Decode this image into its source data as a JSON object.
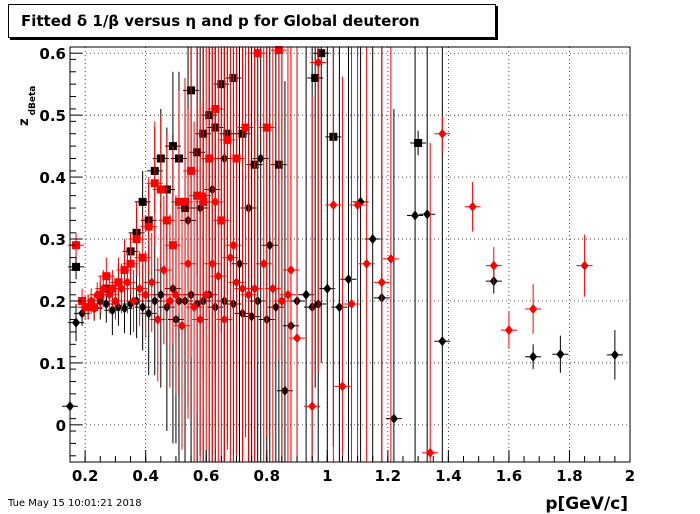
{
  "title": "Fitted δ 1/β versus η and p for Global deuteron",
  "footer": "Tue May 15 10:01:21 2018",
  "chart_data": {
    "type": "scatter",
    "xlabel": "p[GeV/c]",
    "ylabel_main": "z",
    "ylabel_sub": "dBeta",
    "xlim": [
      0.15,
      2.0
    ],
    "ylim": [
      -0.06,
      0.61
    ],
    "x_ticks": [
      "0.2",
      "0.4",
      "0.6",
      "0.8",
      "1",
      "1.2",
      "1.4",
      "1.6",
      "1.8",
      "2"
    ],
    "y_ticks": [
      "0",
      "0.1",
      "0.2",
      "0.3",
      "0.4",
      "0.5",
      "0.6"
    ],
    "grid": true,
    "colors": {
      "black": "#000000",
      "red": "#ff0000"
    },
    "series": [
      {
        "color": "black",
        "marker": "diamond",
        "points": [
          [
            0.15,
            0.03,
            0.02
          ],
          [
            0.17,
            0.165,
            0.03
          ],
          [
            0.19,
            0.18,
            0.02
          ],
          [
            0.21,
            0.19,
            0.02
          ],
          [
            0.23,
            0.188,
            0.02
          ],
          [
            0.25,
            0.2,
            0.03
          ],
          [
            0.27,
            0.195,
            0.03
          ],
          [
            0.29,
            0.185,
            0.04
          ],
          [
            0.31,
            0.19,
            0.03
          ],
          [
            0.33,
            0.188,
            0.04
          ],
          [
            0.35,
            0.195,
            0.05
          ],
          [
            0.37,
            0.2,
            0.06
          ],
          [
            0.39,
            0.19,
            0.07
          ],
          [
            0.41,
            0.18,
            0.1
          ],
          [
            0.43,
            0.2,
            0.12
          ],
          [
            0.45,
            0.21,
            0.15
          ],
          [
            0.47,
            0.19,
            0.2
          ],
          [
            0.49,
            0.22,
            0.25
          ],
          [
            0.51,
            0.2,
            0.3
          ],
          [
            0.53,
            0.2,
            0.35
          ],
          [
            0.55,
            0.21,
            0.5
          ],
          [
            0.57,
            0.195,
            0.5
          ],
          [
            0.59,
            0.2,
            0.5
          ],
          [
            0.61,
            0.21,
            0.5
          ],
          [
            0.63,
            0.19,
            0.5
          ],
          [
            0.66,
            0.2,
            0.5
          ],
          [
            0.69,
            0.195,
            0.5
          ],
          [
            0.72,
            0.18,
            0.5
          ],
          [
            0.75,
            0.175,
            0.5
          ],
          [
            0.77,
            0.2,
            0.5
          ],
          [
            0.8,
            0.17,
            0.5
          ],
          [
            0.83,
            0.19,
            0.5
          ],
          [
            0.86,
            0.055,
            0.5
          ],
          [
            0.88,
            0.16,
            0.5
          ],
          [
            0.9,
            0.2,
            0.5
          ],
          [
            0.93,
            0.21,
            0.5
          ],
          [
            0.95,
            0.19,
            0.5
          ],
          [
            0.97,
            0.195,
            0.5
          ],
          [
            1.0,
            0.22,
            0.5
          ],
          [
            1.04,
            0.19,
            0.5
          ],
          [
            1.07,
            0.235,
            0.5
          ],
          [
            1.11,
            0.36,
            0.5
          ],
          [
            1.15,
            0.3,
            0.5
          ],
          [
            1.18,
            0.205,
            0.5
          ],
          [
            1.22,
            0.01,
            0.5
          ],
          [
            1.29,
            0.338,
            0.5
          ],
          [
            1.33,
            0.34,
            0.5
          ],
          [
            1.38,
            0.135,
            0.5
          ],
          [
            1.55,
            0.232,
            0.02
          ],
          [
            1.68,
            0.11,
            0.02
          ],
          [
            1.77,
            0.114,
            0.03
          ],
          [
            1.95,
            0.113,
            0.04
          ],
          [
            0.5,
            0.17,
            0.2
          ],
          [
            0.54,
            0.33,
            0.3
          ],
          [
            0.58,
            0.35,
            0.4
          ],
          [
            0.62,
            0.38,
            0.5
          ],
          [
            0.66,
            0.43,
            0.5
          ],
          [
            0.71,
            0.26,
            0.5
          ],
          [
            0.74,
            0.35,
            0.5
          ],
          [
            0.78,
            0.43,
            0.5
          ],
          [
            0.81,
            0.29,
            0.5
          ],
          [
            0.85,
            0.2,
            0.5
          ]
        ]
      },
      {
        "color": "black",
        "marker": "square",
        "points": [
          [
            0.17,
            0.255,
            0.02
          ],
          [
            0.27,
            0.22,
            0.02
          ],
          [
            0.31,
            0.23,
            0.03
          ],
          [
            0.35,
            0.28,
            0.03
          ],
          [
            0.37,
            0.31,
            0.04
          ],
          [
            0.39,
            0.36,
            0.05
          ],
          [
            0.41,
            0.33,
            0.06
          ],
          [
            0.43,
            0.41,
            0.07
          ],
          [
            0.45,
            0.43,
            0.08
          ],
          [
            0.47,
            0.38,
            0.1
          ],
          [
            0.49,
            0.45,
            0.12
          ],
          [
            0.51,
            0.43,
            0.14
          ],
          [
            0.53,
            0.35,
            0.16
          ],
          [
            0.55,
            0.54,
            0.2
          ],
          [
            0.57,
            0.44,
            0.2
          ],
          [
            0.59,
            0.47,
            0.3
          ],
          [
            0.61,
            0.5,
            0.3
          ],
          [
            0.63,
            0.48,
            0.4
          ],
          [
            0.65,
            0.55,
            0.4
          ],
          [
            0.67,
            0.47,
            0.5
          ],
          [
            0.69,
            0.56,
            0.5
          ],
          [
            0.72,
            0.47,
            0.5
          ],
          [
            0.76,
            0.42,
            0.5
          ],
          [
            0.84,
            0.42,
            0.5
          ],
          [
            0.96,
            0.56,
            0.5
          ],
          [
            0.98,
            0.6,
            0.5
          ],
          [
            1.02,
            0.465,
            0.5
          ],
          [
            1.3,
            0.455,
            0.02
          ]
        ]
      },
      {
        "color": "red",
        "marker": "square",
        "points": [
          [
            0.17,
            0.29,
            0.02
          ],
          [
            0.19,
            0.2,
            0.02
          ],
          [
            0.21,
            0.19,
            0.02
          ],
          [
            0.23,
            0.19,
            0.02
          ],
          [
            0.25,
            0.21,
            0.03
          ],
          [
            0.27,
            0.24,
            0.03
          ],
          [
            0.29,
            0.22,
            0.03
          ],
          [
            0.31,
            0.23,
            0.04
          ],
          [
            0.33,
            0.25,
            0.05
          ],
          [
            0.35,
            0.26,
            0.05
          ],
          [
            0.37,
            0.3,
            0.06
          ],
          [
            0.39,
            0.27,
            0.07
          ],
          [
            0.41,
            0.32,
            0.08
          ],
          [
            0.43,
            0.39,
            0.1
          ],
          [
            0.45,
            0.38,
            0.12
          ],
          [
            0.47,
            0.33,
            0.14
          ],
          [
            0.49,
            0.29,
            0.16
          ],
          [
            0.51,
            0.36,
            0.18
          ],
          [
            0.53,
            0.36,
            0.2
          ],
          [
            0.55,
            0.41,
            0.3
          ],
          [
            0.57,
            0.37,
            0.35
          ],
          [
            0.59,
            0.36,
            0.4
          ],
          [
            0.61,
            0.43,
            0.5
          ],
          [
            0.63,
            0.51,
            0.5
          ],
          [
            0.65,
            0.33,
            0.5
          ],
          [
            0.67,
            0.46,
            0.5
          ],
          [
            0.7,
            0.43,
            0.5
          ],
          [
            0.73,
            0.48,
            0.5
          ],
          [
            0.77,
            0.6,
            0.5
          ],
          [
            0.8,
            0.48,
            0.5
          ],
          [
            0.84,
            0.605,
            0.5
          ]
        ]
      },
      {
        "color": "red",
        "marker": "diamond",
        "points": [
          [
            0.2,
            0.19,
            0.02
          ],
          [
            0.22,
            0.2,
            0.02
          ],
          [
            0.24,
            0.21,
            0.02
          ],
          [
            0.26,
            0.22,
            0.03
          ],
          [
            0.28,
            0.21,
            0.03
          ],
          [
            0.3,
            0.2,
            0.03
          ],
          [
            0.32,
            0.22,
            0.04
          ],
          [
            0.34,
            0.23,
            0.05
          ],
          [
            0.36,
            0.2,
            0.05
          ],
          [
            0.38,
            0.22,
            0.06
          ],
          [
            0.4,
            0.21,
            0.07
          ],
          [
            0.42,
            0.23,
            0.08
          ],
          [
            0.44,
            0.17,
            0.1
          ],
          [
            0.46,
            0.25,
            0.12
          ],
          [
            0.48,
            0.2,
            0.14
          ],
          [
            0.5,
            0.21,
            0.16
          ],
          [
            0.52,
            0.16,
            0.2
          ],
          [
            0.54,
            0.26,
            0.25
          ],
          [
            0.56,
            0.19,
            0.3
          ],
          [
            0.58,
            0.17,
            0.35
          ],
          [
            0.6,
            0.21,
            0.4
          ],
          [
            0.62,
            0.26,
            0.45
          ],
          [
            0.64,
            0.24,
            0.5
          ],
          [
            0.66,
            0.17,
            0.5
          ],
          [
            0.68,
            0.27,
            0.5
          ],
          [
            0.7,
            0.23,
            0.5
          ],
          [
            0.72,
            0.22,
            0.5
          ],
          [
            0.74,
            0.21,
            0.5
          ],
          [
            0.76,
            0.22,
            0.5
          ],
          [
            0.79,
            0.26,
            0.5
          ],
          [
            0.82,
            0.22,
            0.5
          ],
          [
            0.85,
            0.2,
            0.5
          ],
          [
            0.88,
            0.25,
            0.5
          ],
          [
            0.9,
            0.14,
            0.5
          ],
          [
            0.95,
            0.03,
            0.5
          ],
          [
            0.97,
            0.585,
            0.5
          ],
          [
            1.02,
            0.355,
            0.5
          ],
          [
            1.05,
            0.062,
            0.5
          ],
          [
            1.08,
            0.195,
            0.5
          ],
          [
            1.1,
            0.355,
            0.5
          ],
          [
            1.13,
            0.26,
            0.5
          ],
          [
            1.18,
            0.23,
            0.5
          ],
          [
            1.21,
            0.268,
            0.5
          ],
          [
            1.34,
            -0.045,
            0.5
          ],
          [
            1.38,
            0.47,
            0.03
          ],
          [
            1.48,
            0.352,
            0.04
          ],
          [
            1.55,
            0.257,
            0.03
          ],
          [
            1.6,
            0.153,
            0.03
          ],
          [
            1.68,
            0.187,
            0.04
          ],
          [
            1.85,
            0.257,
            0.05
          ],
          [
            0.63,
            0.36,
            0.4
          ],
          [
            0.69,
            0.29,
            0.5
          ],
          [
            0.87,
            0.21,
            0.5
          ],
          [
            0.59,
            0.37,
            0.3
          ]
        ]
      }
    ]
  }
}
